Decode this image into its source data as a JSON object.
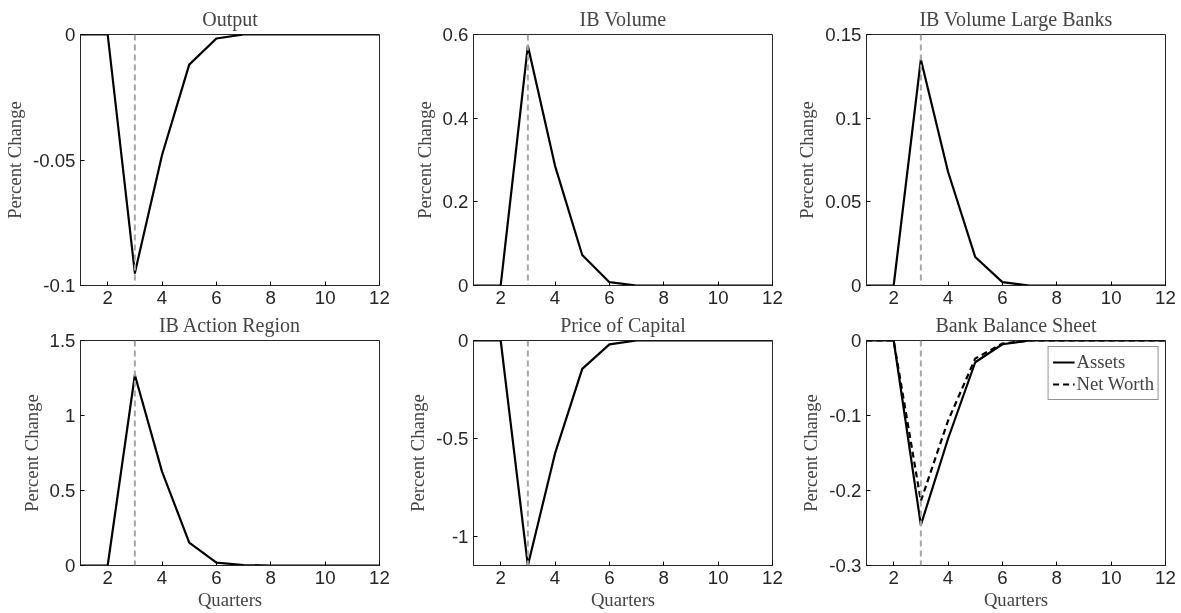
{
  "chart_data": [
    {
      "type": "line",
      "title": "Output",
      "ylabel": "Percent Change",
      "x": [
        1,
        2,
        3,
        4,
        5,
        6,
        7,
        8,
        9,
        10,
        11,
        12
      ],
      "xlim": [
        1,
        12
      ],
      "xticks": [
        2,
        4,
        6,
        8,
        10,
        12
      ],
      "ylim": [
        -0.1,
        0
      ],
      "yticks": [
        -0.1,
        -0.05,
        0
      ],
      "grid": false,
      "legend": false,
      "series": [
        {
          "color": "#000000",
          "line_style": "solid",
          "values": [
            0,
            0,
            -0.095,
            -0.048,
            -0.012,
            -0.0016,
            0,
            0,
            0,
            0,
            0,
            0
          ]
        }
      ],
      "ref_lines": [
        {
          "axis": "x",
          "value": 3,
          "color": "#a6a6a6",
          "line_style": "dashed"
        }
      ]
    },
    {
      "type": "line",
      "title": "IB Volume",
      "ylabel": "Percent Change",
      "x": [
        1,
        2,
        3,
        4,
        5,
        6,
        7,
        8,
        9,
        10,
        11,
        12
      ],
      "xlim": [
        1,
        12
      ],
      "xticks": [
        2,
        4,
        6,
        8,
        10,
        12
      ],
      "ylim": [
        0,
        0.6
      ],
      "yticks": [
        0,
        0.2,
        0.4,
        0.6
      ],
      "grid": false,
      "legend": false,
      "series": [
        {
          "color": "#000000",
          "line_style": "solid",
          "values": [
            0,
            0,
            0.573,
            0.286,
            0.073,
            0.008,
            0,
            0,
            0,
            0,
            0,
            0
          ]
        }
      ],
      "ref_lines": [
        {
          "axis": "x",
          "value": 3,
          "color": "#a6a6a6",
          "line_style": "dashed"
        }
      ]
    },
    {
      "type": "line",
      "title": "IB Volume Large Banks",
      "ylabel": "Percent Change",
      "x": [
        1,
        2,
        3,
        4,
        5,
        6,
        7,
        8,
        9,
        10,
        11,
        12
      ],
      "xlim": [
        1,
        12
      ],
      "xticks": [
        2,
        4,
        6,
        8,
        10,
        12
      ],
      "ylim": [
        0,
        0.15
      ],
      "yticks": [
        0,
        0.05,
        0.1,
        0.15
      ],
      "grid": false,
      "legend": false,
      "series": [
        {
          "color": "#000000",
          "line_style": "solid",
          "values": [
            0,
            0,
            0.135,
            0.068,
            0.017,
            0.002,
            0,
            0,
            0,
            0,
            0,
            0
          ]
        }
      ],
      "ref_lines": [
        {
          "axis": "x",
          "value": 3,
          "color": "#a6a6a6",
          "line_style": "dashed"
        }
      ]
    },
    {
      "type": "line",
      "title": "IB Action Region",
      "xlabel": "Quarters",
      "ylabel": "Percent Change",
      "x": [
        1,
        2,
        3,
        4,
        5,
        6,
        7,
        8,
        9,
        10,
        11,
        12
      ],
      "xlim": [
        1,
        12
      ],
      "xticks": [
        2,
        4,
        6,
        8,
        10,
        12
      ],
      "ylim": [
        0,
        1.5
      ],
      "yticks": [
        0,
        0.5,
        1,
        1.5
      ],
      "grid": false,
      "legend": false,
      "series": [
        {
          "color": "#000000",
          "line_style": "solid",
          "values": [
            0,
            0,
            1.27,
            0.626,
            0.153,
            0.019,
            0.003,
            0,
            0,
            0,
            0,
            0
          ]
        }
      ],
      "ref_lines": [
        {
          "axis": "x",
          "value": 3,
          "color": "#a6a6a6",
          "line_style": "dashed"
        }
      ]
    },
    {
      "type": "line",
      "title": "Price of Capital",
      "xlabel": "Quarters",
      "ylabel": "Percent Change",
      "x": [
        1,
        2,
        3,
        4,
        5,
        6,
        7,
        8,
        9,
        10,
        11,
        12
      ],
      "xlim": [
        1,
        12
      ],
      "xticks": [
        2,
        4,
        6,
        8,
        10,
        12
      ],
      "ylim": [
        -1.15,
        0
      ],
      "yticks": [
        -1,
        -0.5,
        0
      ],
      "grid": false,
      "legend": false,
      "series": [
        {
          "color": "#000000",
          "line_style": "solid",
          "values": [
            0,
            0,
            -1.15,
            -0.577,
            -0.145,
            -0.02,
            0,
            0,
            0,
            0,
            0,
            0
          ]
        }
      ],
      "ref_lines": [
        {
          "axis": "x",
          "value": 3,
          "color": "#a6a6a6",
          "line_style": "dashed"
        }
      ]
    },
    {
      "type": "line",
      "title": "Bank Balance Sheet",
      "xlabel": "Quarters",
      "ylabel": "Percent Change",
      "x": [
        1,
        2,
        3,
        4,
        5,
        6,
        7,
        8,
        9,
        10,
        11,
        12
      ],
      "xlim": [
        1,
        12
      ],
      "xticks": [
        2,
        4,
        6,
        8,
        10,
        12
      ],
      "ylim": [
        -0.3,
        0
      ],
      "yticks": [
        -0.3,
        -0.2,
        -0.1,
        0
      ],
      "grid": false,
      "legend": "top right",
      "series": [
        {
          "name": "Assets",
          "color": "#000000",
          "line_style": "solid",
          "values": [
            0,
            0,
            -0.246,
            -0.131,
            -0.029,
            -0.005,
            0,
            0,
            0,
            0,
            0,
            0
          ]
        },
        {
          "name": "Net Worth",
          "color": "#000000",
          "line_style": "dashed",
          "values": [
            0,
            0,
            -0.214,
            -0.107,
            -0.024,
            -0.004,
            0,
            0,
            0,
            0,
            0,
            0
          ]
        }
      ],
      "ref_lines": [
        {
          "axis": "x",
          "value": 3,
          "color": "#a6a6a6",
          "line_style": "dashed"
        }
      ]
    }
  ]
}
